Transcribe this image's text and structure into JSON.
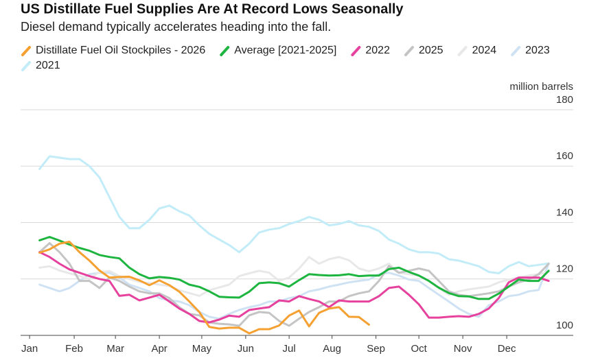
{
  "chart_data": {
    "type": "line",
    "title": "US Distillate Fuel Supplies Are At Record Lows Seasonally",
    "subtitle": "Diesel demand typically accelerates heading into the fall.",
    "ylabel": "million barrels",
    "x": [
      2,
      3,
      4,
      5,
      6,
      7,
      8,
      9,
      10,
      11,
      12,
      13,
      14,
      15,
      16,
      17,
      18,
      19,
      20,
      21,
      22,
      23,
      24,
      25,
      26,
      27,
      28,
      29,
      30,
      31,
      32,
      33,
      34,
      35,
      36,
      37,
      38,
      39,
      40,
      41,
      42,
      43,
      44,
      45,
      46,
      47,
      48,
      49,
      50,
      51,
      52,
      53
    ],
    "xlim": [
      0.1,
      53.4
    ],
    "xticks": [
      {
        "value": 1,
        "label": "Jan"
      },
      {
        "value": 5.47,
        "label": "Feb"
      },
      {
        "value": 9.6,
        "label": "Mar"
      },
      {
        "value": 14.0,
        "label": "Apr"
      },
      {
        "value": 18.25,
        "label": "May"
      },
      {
        "value": 22.65,
        "label": "Jun"
      },
      {
        "value": 27.0,
        "label": "Jul"
      },
      {
        "value": 31.3,
        "label": "Aug"
      },
      {
        "value": 35.7,
        "label": "Sep"
      },
      {
        "value": 40.0,
        "label": "Oct"
      },
      {
        "value": 44.4,
        "label": "Nov"
      },
      {
        "value": 48.8,
        "label": "Dec"
      }
    ],
    "ylim": [
      100,
      180
    ],
    "yticks": [
      100,
      120,
      140,
      160,
      180
    ],
    "grid": true,
    "series": [
      {
        "name": "Distillate Fuel Oil Stockpiles - 2026",
        "color": "#f5a030",
        "values": [
          129.3,
          130.5,
          132.5,
          133.2,
          129.5,
          126.5,
          123,
          120.5,
          120.7,
          120.8,
          119.5,
          117.8,
          119.5,
          117.8,
          115.5,
          112,
          108.3,
          103,
          102.4,
          102.7,
          102.7,
          100.7,
          102.2,
          102.2,
          103.5,
          107,
          108.8,
          103.2,
          108,
          109.5,
          110,
          106.6,
          106.5,
          103.8,
          null,
          null,
          null,
          null,
          null,
          null,
          null,
          null,
          null,
          null,
          null,
          null,
          null,
          null,
          null,
          null,
          null,
          null
        ]
      },
      {
        "name": "Average [2021-2025]",
        "color": "#1db53f",
        "values": [
          133.7,
          134.9,
          133.6,
          132.2,
          131,
          130,
          128.5,
          127.8,
          127.3,
          124,
          121.7,
          120.2,
          120.7,
          120.4,
          119.8,
          118,
          117.2,
          115.6,
          113.7,
          113.5,
          113.4,
          115.5,
          118.5,
          118.8,
          118.5,
          117.3,
          119.6,
          121.7,
          121.4,
          121.2,
          121.3,
          121.7,
          121,
          121.2,
          121.2,
          123.5,
          124,
          122.5,
          121.2,
          119.3,
          116.9,
          115,
          113.9,
          113.8,
          112.9,
          112.9,
          114.8,
          117.3,
          119.8,
          119.3,
          119.3,
          122.9
        ]
      },
      {
        "name": "2022",
        "color": "#e5419d",
        "values": [
          129.5,
          127.8,
          125.4,
          123.4,
          122.2,
          121,
          120,
          119.3,
          114,
          114.4,
          112.4,
          113.4,
          114.4,
          112,
          109.5,
          107.6,
          105.1,
          104.6,
          105.6,
          107,
          106.6,
          109,
          109.5,
          110,
          112.4,
          112,
          113.9,
          112.9,
          112,
          110,
          112.4,
          112,
          112,
          112,
          113.9,
          116.8,
          117.3,
          114.4,
          111,
          106.3,
          106.3,
          106.6,
          106.8,
          106.6,
          107.6,
          109.5,
          113.2,
          118.8,
          120.5,
          120.5,
          120.5,
          119.3
        ]
      },
      {
        "name": "2025",
        "color": "#c4c4c4",
        "values": [
          129.5,
          132.7,
          129.5,
          125.4,
          119.3,
          119.3,
          116.8,
          120.5,
          119.3,
          117.3,
          115.6,
          114.9,
          114.9,
          113.2,
          110,
          107.6,
          107.1,
          104.6,
          104.1,
          103.9,
          103.4,
          107.1,
          108.3,
          108,
          105.1,
          103.4,
          105.9,
          108.3,
          110,
          112,
          112,
          113.9,
          114.9,
          115.6,
          119.3,
          124.6,
          122.2,
          122.9,
          123.7,
          122.9,
          119.3,
          115.6,
          114.4,
          113.9,
          114.4,
          114.9,
          115.6,
          117.3,
          118.8,
          119.8,
          121.7,
          125.4
        ]
      },
      {
        "name": "2024",
        "color": "#e8e8e8",
        "values": [
          124,
          124.5,
          123,
          122,
          121,
          120,
          122.5,
          122.8,
          121,
          120,
          119,
          118.5,
          118,
          117.5,
          116,
          115,
          114,
          116,
          117,
          118,
          121,
          122,
          122.9,
          122.2,
          119.3,
          120.5,
          123.7,
          127.8,
          125.4,
          127,
          127.8,
          126.6,
          123.7,
          122.7,
          123.7,
          125.4,
          122.2,
          121.7,
          121.2,
          119.3,
          116.8,
          114.4,
          115.6,
          116.3,
          116.8,
          117.3,
          118.8,
          119.8,
          120.5,
          121.2,
          121.7,
          122.5
        ]
      },
      {
        "name": "2023",
        "color": "#cfe2f3",
        "values": [
          118,
          116.8,
          115.6,
          116.8,
          119.3,
          121.7,
          122.2,
          122.2,
          120.5,
          118,
          116.8,
          115.6,
          113.2,
          112.4,
          112,
          110.7,
          108.3,
          106.6,
          105.9,
          107.6,
          109,
          110,
          110.7,
          112,
          112,
          113.2,
          113.9,
          115.6,
          116.3,
          117.3,
          118,
          118.8,
          119.3,
          119.8,
          121.7,
          122.2,
          121.2,
          119.8,
          119.3,
          116.8,
          114.4,
          112,
          109.5,
          107.6,
          106.6,
          110.7,
          112,
          113.9,
          114.4,
          115.6,
          116.1,
          125.4
        ]
      },
      {
        "name": "2021",
        "color": "#c2ecf7",
        "values": [
          159,
          163.5,
          163,
          162.5,
          162.5,
          160,
          156,
          149,
          142,
          138,
          138,
          141,
          145,
          146,
          144,
          142.5,
          139,
          136,
          134,
          132,
          129.5,
          132.5,
          136.5,
          137.5,
          138,
          139.5,
          140.5,
          142,
          141,
          139,
          139.5,
          140.5,
          139,
          138.5,
          137,
          134,
          132.5,
          130.5,
          129.5,
          129.5,
          129,
          127,
          126.5,
          125.5,
          124.5,
          122.5,
          122,
          124.5,
          126,
          124.5,
          125,
          125.5
        ]
      }
    ]
  }
}
